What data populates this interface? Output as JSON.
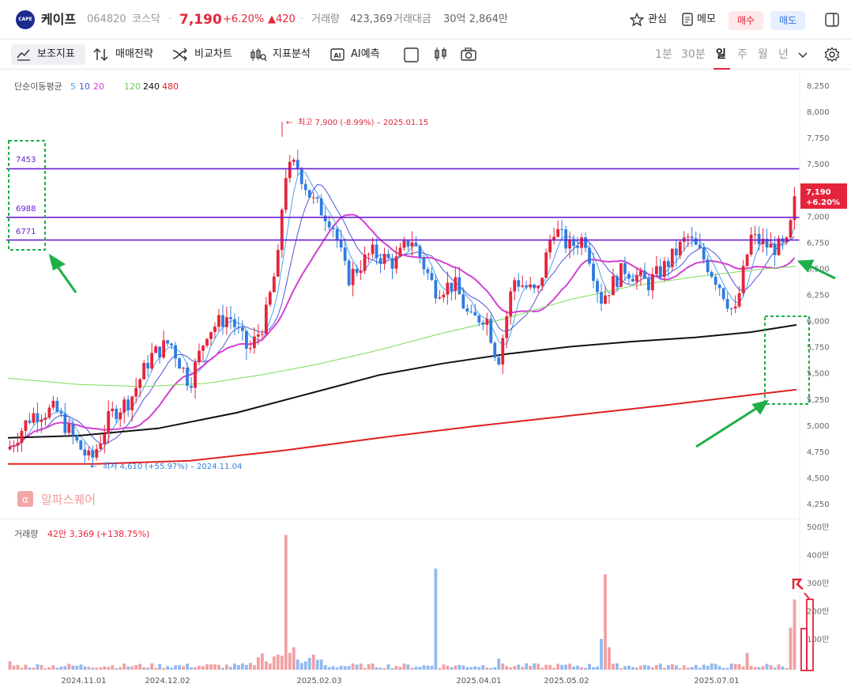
{
  "header": {
    "logo_text": "CAPE",
    "name": "케이프",
    "code": "064820",
    "market": "코스닥",
    "price": "7,190",
    "change_pct": "+6.20%",
    "change_abs": "▲420",
    "volume_label": "거래량",
    "volume": "423,369",
    "amount_label": "거래대금",
    "amount": "30억 2,864만",
    "watch_label": "관심",
    "memo_label": "메모",
    "buy_label": "매수",
    "sell_label": "매도"
  },
  "toolbar": {
    "items": [
      "보조지표",
      "매매전략",
      "비교차트",
      "지표분석",
      "AI예측"
    ],
    "timeframes": [
      "1분",
      "30분",
      "일",
      "주",
      "월",
      "년"
    ],
    "active_timeframe": "일"
  },
  "chart_data": {
    "type": "candlestick",
    "ma_legend": {
      "label": "단순이동평균",
      "periods": [
        "5",
        "10",
        "20",
        "120",
        "240",
        "480"
      ]
    },
    "yaxis_ticks": [
      "8,250",
      "8,000",
      "7,750",
      "7,500",
      "7,250",
      "7,000",
      "6,750",
      "6,500",
      "6,250",
      "6,000",
      "5,750",
      "5,500",
      "5,250",
      "5,000",
      "4,750",
      "4,500",
      "4,250"
    ],
    "ylim": [
      4250,
      8250
    ],
    "xaxis_ticks": [
      "2024.11.01",
      "2024.12.02",
      "2025.02.03",
      "2025.04.01",
      "2025.05.02",
      "2025.07.01"
    ],
    "current_price": "7,190",
    "current_change": "+6.20%",
    "high_annotation": "최고 7,900 (-8.99%) – 2025.01.15",
    "low_annotation": "최저 4,610 (+55.97%) – 2024.11.04",
    "horizontal_levels": [
      {
        "label": "7453",
        "value": 7453
      },
      {
        "label": "6988",
        "value": 6988
      },
      {
        "label": "6771",
        "value": 6771
      }
    ],
    "watermark": "알파스퀘어",
    "volume_panel": {
      "label": "거래량",
      "value": "42만 3,369 (+138.75%)",
      "yaxis_ticks": [
        "500만",
        "400만",
        "300만",
        "200만",
        "100만"
      ]
    },
    "colors": {
      "up": "#e5243b",
      "down": "#2f7be0",
      "ma5": "#4aa3f0",
      "ma10": "#4b55d6",
      "ma20": "#d43fd4",
      "ma120": "#7ddc5a",
      "ma240": "#111111",
      "ma480": "#e02020",
      "level": "#6a1fd1",
      "annotation": "#1fae4a"
    }
  }
}
